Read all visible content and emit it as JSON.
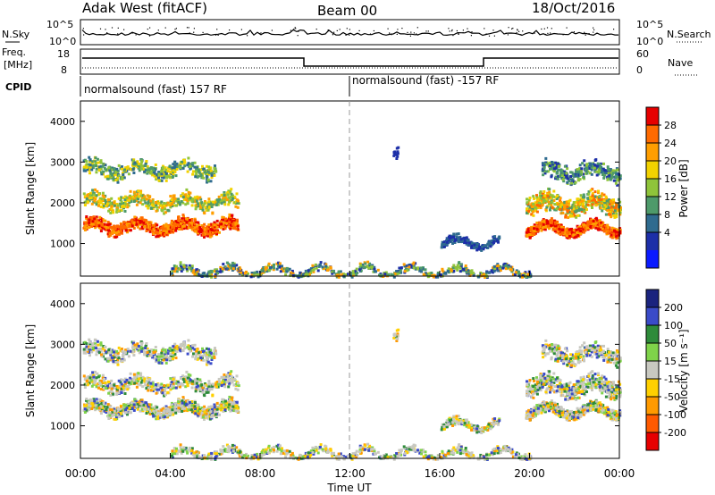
{
  "header": {
    "station": "Adak West (fitACF)",
    "beam": "Beam 00",
    "date": "18/Oct/2016"
  },
  "panels": {
    "noise": {
      "left_label": "N.Sky",
      "right_label": "N.Search",
      "left_ticks": [
        "10^5",
        "10^0"
      ],
      "right_ticks": [
        "10^5",
        "10^0"
      ]
    },
    "freq": {
      "left_label_line1": "Freq.",
      "left_label_line2": "[MHz]",
      "right_label": "Nave",
      "left_ticks": [
        "18",
        "8"
      ],
      "right_ticks": [
        "60",
        "0"
      ]
    },
    "cpid": {
      "label": "CPID",
      "segments": [
        "normalsound (fast) 157 RF",
        "normalsound (fast) -157 RF"
      ]
    }
  },
  "colorbars": {
    "power": {
      "title": "Power [dB]",
      "labels": [
        "28",
        "24",
        "20",
        "16",
        "12",
        "8",
        "4"
      ],
      "colors": [
        "#e60000",
        "#ff6a00",
        "#ff9e00",
        "#f2d200",
        "#8fc43a",
        "#4e9a6a",
        "#2f6b8f",
        "#1d2fa8",
        "#0a1aff"
      ]
    },
    "velocity": {
      "title": "Velocity [m s⁻¹]",
      "labels": [
        "200",
        "100",
        "50",
        "15",
        "-15",
        "-50",
        "-100",
        "-200"
      ],
      "colors": [
        "#1a237e",
        "#3a4bc8",
        "#2e8b3a",
        "#7fd34a",
        "#c8c8c0",
        "#ffd000",
        "#ff9a00",
        "#ff5a00",
        "#e60000"
      ]
    }
  },
  "chart_data": [
    {
      "type": "heatmap",
      "panel": "power",
      "ylabel": "Slant Range [km]",
      "ylim": [
        200,
        4500
      ],
      "yticks": [
        "1000",
        "2000",
        "3000",
        "4000"
      ],
      "xlim": [
        "00:00",
        "24:00"
      ],
      "colorbar": "Power [dB]",
      "color_range": [
        0,
        30
      ]
    },
    {
      "type": "heatmap",
      "panel": "velocity",
      "ylabel": "Slant Range [km]",
      "ylim": [
        200,
        4500
      ],
      "yticks": [
        "1000",
        "2000",
        "3000",
        "4000"
      ],
      "xlim": [
        "00:00",
        "24:00"
      ],
      "colorbar": "Velocity [m s⁻¹]",
      "color_range": [
        -200,
        200
      ]
    }
  ],
  "xaxis": {
    "title": "Time UT",
    "ticks": [
      "00:00",
      "04:00",
      "08:00",
      "12:00",
      "16:00",
      "20:00",
      "00:00"
    ]
  }
}
